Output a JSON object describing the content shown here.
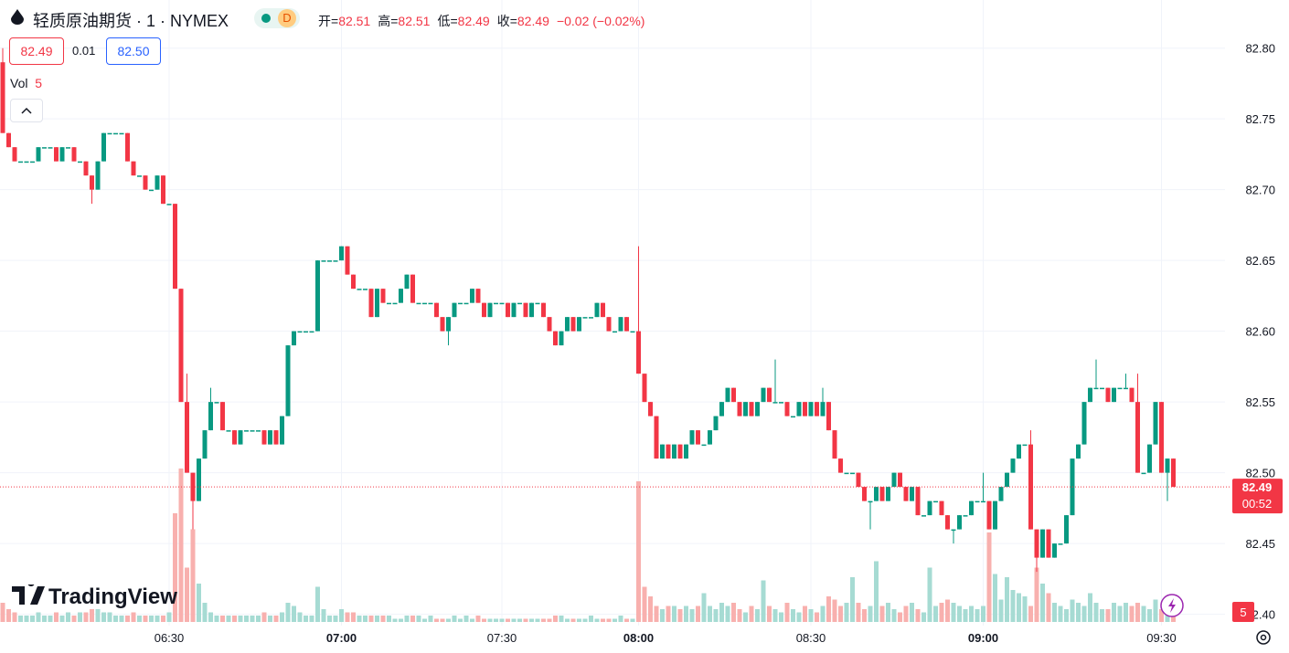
{
  "header": {
    "symbol": "轻质原油期货 · 1 · NYMEX",
    "badge": "D",
    "ohlc": [
      {
        "label": "开=",
        "value": 82.51
      },
      {
        "label": "高=",
        "value": 82.51
      },
      {
        "label": "低=",
        "value": 82.49
      },
      {
        "label": "收=",
        "value": 82.49
      }
    ],
    "change": "−0.02 (−0.02%)",
    "sell": "82.49",
    "spread": "0.01",
    "buy": "82.50",
    "volume_label": "Vol",
    "volume_value": 5,
    "brand": "TradingView"
  },
  "chart_data": {
    "type": "candlestick",
    "up_color": "#089981",
    "down_color": "#f23645",
    "up_volume_color": "#a6dbd3",
    "down_volume_color": "#f8b0ae",
    "grid": true,
    "categories": [
      null,
      null,
      null,
      null,
      null,
      null,
      null,
      null,
      null,
      null,
      null,
      null,
      null,
      null,
      null,
      null,
      null,
      null,
      null,
      null,
      null,
      null,
      null,
      null,
      null,
      null,
      null,
      null,
      "06:30",
      null,
      null,
      null,
      null,
      null,
      null,
      null,
      null,
      null,
      null,
      null,
      null,
      null,
      null,
      null,
      null,
      null,
      null,
      null,
      null,
      null,
      null,
      null,
      null,
      null,
      null,
      null,
      null,
      "07:00",
      null,
      null,
      null,
      null,
      null,
      null,
      null,
      null,
      null,
      null,
      null,
      null,
      null,
      null,
      null,
      null,
      null,
      null,
      null,
      null,
      null,
      null,
      null,
      null,
      null,
      null,
      "07:30",
      null,
      null,
      null,
      null,
      null,
      null,
      null,
      null,
      null,
      null,
      null,
      null,
      null,
      null,
      null,
      null,
      null,
      null,
      null,
      null,
      null,
      null,
      "08:00",
      null,
      null,
      null,
      null,
      null,
      null,
      null,
      null,
      null,
      null,
      null,
      null,
      null,
      null,
      null,
      null,
      null,
      null,
      null,
      null,
      null,
      null,
      null,
      null,
      null,
      null,
      null,
      null,
      "08:30",
      null,
      null,
      null,
      null,
      null,
      null,
      null,
      null,
      null,
      null,
      null,
      null,
      null,
      null,
      null,
      null,
      null,
      null,
      null,
      null,
      null,
      null,
      null,
      null,
      null,
      null,
      null,
      null,
      "09:00",
      null,
      null,
      null,
      null,
      null,
      null,
      null,
      null,
      null,
      null,
      null,
      null,
      null,
      null,
      null,
      null,
      null,
      null,
      null,
      null,
      null,
      null,
      null,
      null,
      null,
      null,
      null,
      null,
      null,
      "09:30",
      null,
      null
    ],
    "open": [
      82.79,
      82.74,
      82.73,
      82.72,
      82.72,
      82.72,
      82.72,
      82.73,
      82.73,
      82.73,
      82.72,
      82.73,
      82.73,
      82.72,
      82.72,
      82.71,
      82.7,
      82.72,
      82.74,
      82.74,
      82.74,
      82.74,
      82.72,
      82.71,
      82.71,
      82.7,
      82.7,
      82.71,
      82.69,
      82.69,
      82.63,
      82.55,
      82.5,
      82.48,
      82.51,
      82.53,
      82.55,
      82.55,
      82.53,
      82.53,
      82.52,
      82.53,
      82.53,
      82.53,
      82.53,
      82.52,
      82.53,
      82.52,
      82.54,
      82.59,
      82.6,
      82.6,
      82.6,
      82.6,
      82.65,
      82.65,
      82.65,
      82.65,
      82.66,
      82.64,
      82.63,
      82.63,
      82.63,
      82.61,
      82.63,
      82.62,
      82.62,
      82.62,
      82.63,
      82.64,
      82.62,
      82.62,
      82.62,
      82.62,
      82.61,
      82.6,
      82.61,
      82.62,
      82.62,
      82.62,
      82.63,
      82.62,
      82.61,
      82.62,
      82.62,
      82.62,
      82.61,
      82.62,
      82.62,
      82.61,
      82.62,
      82.62,
      82.61,
      82.6,
      82.59,
      82.6,
      82.61,
      82.6,
      82.61,
      82.61,
      82.61,
      82.62,
      82.61,
      82.6,
      82.6,
      82.61,
      82.6,
      82.6,
      82.57,
      82.55,
      82.54,
      82.51,
      82.52,
      82.51,
      82.52,
      82.51,
      82.52,
      82.53,
      82.52,
      82.52,
      82.53,
      82.54,
      82.55,
      82.56,
      82.55,
      82.54,
      82.55,
      82.54,
      82.55,
      82.56,
      82.55,
      82.55,
      82.55,
      82.54,
      82.54,
      82.55,
      82.54,
      82.55,
      82.54,
      82.55,
      82.53,
      82.51,
      82.5,
      82.5,
      82.5,
      82.49,
      82.48,
      82.48,
      82.49,
      82.48,
      82.49,
      82.5,
      82.49,
      82.48,
      82.49,
      82.47,
      82.47,
      82.48,
      82.48,
      82.47,
      82.46,
      82.46,
      82.47,
      82.47,
      82.48,
      82.48,
      82.48,
      82.46,
      82.48,
      82.49,
      82.5,
      82.51,
      82.52,
      82.52,
      82.46,
      82.44,
      82.46,
      82.44,
      82.45,
      82.45,
      82.47,
      82.51,
      82.52,
      82.55,
      82.56,
      82.56,
      82.56,
      82.55,
      82.56,
      82.56,
      82.56,
      82.55,
      82.5,
      82.5,
      82.52,
      82.55,
      82.5,
      82.51
    ],
    "high": [
      82.8,
      82.74,
      82.73,
      82.72,
      82.72,
      82.72,
      82.73,
      82.73,
      82.73,
      82.73,
      82.73,
      82.73,
      82.73,
      82.72,
      82.72,
      82.71,
      82.72,
      82.74,
      82.74,
      82.74,
      82.74,
      82.74,
      82.72,
      82.71,
      82.71,
      82.7,
      82.71,
      82.71,
      82.69,
      82.69,
      82.63,
      82.57,
      82.5,
      82.51,
      82.53,
      82.56,
      82.55,
      82.55,
      82.53,
      82.53,
      82.53,
      82.53,
      82.53,
      82.53,
      82.53,
      82.53,
      82.53,
      82.54,
      82.59,
      82.6,
      82.6,
      82.6,
      82.6,
      82.65,
      82.65,
      82.65,
      82.65,
      82.66,
      82.66,
      82.64,
      82.63,
      82.63,
      82.63,
      82.63,
      82.63,
      82.62,
      82.62,
      82.63,
      82.64,
      82.64,
      82.62,
      82.62,
      82.62,
      82.62,
      82.61,
      82.61,
      82.62,
      82.62,
      82.62,
      82.63,
      82.63,
      82.62,
      82.62,
      82.62,
      82.62,
      82.62,
      82.62,
      82.62,
      82.62,
      82.62,
      82.62,
      82.62,
      82.61,
      82.6,
      82.6,
      82.61,
      82.61,
      82.61,
      82.61,
      82.61,
      82.62,
      82.62,
      82.61,
      82.6,
      82.61,
      82.61,
      82.6,
      82.66,
      82.57,
      82.55,
      82.54,
      82.52,
      82.52,
      82.52,
      82.52,
      82.52,
      82.53,
      82.53,
      82.52,
      82.53,
      82.54,
      82.55,
      82.56,
      82.56,
      82.55,
      82.55,
      82.55,
      82.55,
      82.56,
      82.56,
      82.58,
      82.55,
      82.55,
      82.54,
      82.55,
      82.55,
      82.55,
      82.55,
      82.56,
      82.55,
      82.53,
      82.51,
      82.5,
      82.5,
      82.5,
      82.49,
      82.48,
      82.49,
      82.49,
      82.49,
      82.5,
      82.5,
      82.49,
      82.49,
      82.49,
      82.47,
      82.48,
      82.48,
      82.48,
      82.47,
      82.46,
      82.47,
      82.47,
      82.48,
      82.48,
      82.5,
      82.48,
      82.48,
      82.49,
      82.5,
      82.51,
      82.52,
      82.52,
      82.53,
      82.46,
      82.46,
      82.46,
      82.45,
      82.45,
      82.47,
      82.51,
      82.52,
      82.55,
      82.56,
      82.58,
      82.56,
      82.56,
      82.56,
      82.56,
      82.57,
      82.56,
      82.57,
      82.5,
      82.52,
      82.55,
      82.55,
      82.51,
      82.51
    ],
    "low": [
      82.74,
      82.73,
      82.72,
      82.72,
      82.72,
      82.72,
      82.72,
      82.73,
      82.73,
      82.72,
      82.72,
      82.73,
      82.72,
      82.72,
      82.71,
      82.69,
      82.7,
      82.72,
      82.74,
      82.74,
      82.74,
      82.72,
      82.71,
      82.71,
      82.7,
      82.7,
      82.7,
      82.69,
      82.69,
      82.63,
      82.55,
      82.5,
      82.46,
      82.48,
      82.51,
      82.53,
      82.55,
      82.53,
      82.53,
      82.52,
      82.52,
      82.53,
      82.53,
      82.53,
      82.52,
      82.52,
      82.52,
      82.52,
      82.54,
      82.59,
      82.6,
      82.6,
      82.6,
      82.6,
      82.65,
      82.65,
      82.65,
      82.65,
      82.64,
      82.63,
      82.63,
      82.63,
      82.61,
      82.61,
      82.62,
      82.62,
      82.62,
      82.62,
      82.63,
      82.62,
      82.62,
      82.62,
      82.62,
      82.61,
      82.6,
      82.59,
      82.61,
      82.62,
      82.62,
      82.62,
      82.62,
      82.61,
      82.61,
      82.62,
      82.62,
      82.61,
      82.61,
      82.62,
      82.61,
      82.61,
      82.62,
      82.61,
      82.6,
      82.59,
      82.59,
      82.6,
      82.6,
      82.6,
      82.61,
      82.61,
      82.61,
      82.61,
      82.6,
      82.6,
      82.6,
      82.6,
      82.6,
      82.57,
      82.55,
      82.54,
      82.51,
      82.51,
      82.51,
      82.51,
      82.51,
      82.51,
      82.52,
      82.52,
      82.52,
      82.52,
      82.53,
      82.54,
      82.55,
      82.55,
      82.54,
      82.54,
      82.54,
      82.54,
      82.55,
      82.55,
      82.55,
      82.55,
      82.54,
      82.54,
      82.54,
      82.54,
      82.54,
      82.54,
      82.54,
      82.53,
      82.51,
      82.5,
      82.5,
      82.5,
      82.49,
      82.48,
      82.46,
      82.48,
      82.48,
      82.48,
      82.49,
      82.49,
      82.48,
      82.48,
      82.47,
      82.47,
      82.47,
      82.48,
      82.47,
      82.46,
      82.45,
      82.46,
      82.47,
      82.47,
      82.48,
      82.48,
      82.46,
      82.46,
      82.48,
      82.49,
      82.5,
      82.51,
      82.52,
      82.46,
      82.43,
      82.44,
      82.44,
      82.44,
      82.45,
      82.45,
      82.47,
      82.51,
      82.52,
      82.55,
      82.56,
      82.56,
      82.55,
      82.55,
      82.56,
      82.56,
      82.55,
      82.5,
      82.5,
      82.5,
      82.52,
      82.5,
      82.48,
      82.49
    ],
    "close": [
      82.74,
      82.73,
      82.72,
      82.72,
      82.72,
      82.72,
      82.73,
      82.73,
      82.73,
      82.72,
      82.73,
      82.73,
      82.72,
      82.72,
      82.71,
      82.7,
      82.72,
      82.74,
      82.74,
      82.74,
      82.74,
      82.72,
      82.71,
      82.71,
      82.7,
      82.7,
      82.71,
      82.69,
      82.69,
      82.63,
      82.55,
      82.5,
      82.48,
      82.51,
      82.53,
      82.55,
      82.55,
      82.53,
      82.53,
      82.52,
      82.53,
      82.53,
      82.53,
      82.53,
      82.52,
      82.53,
      82.52,
      82.54,
      82.59,
      82.6,
      82.6,
      82.6,
      82.6,
      82.65,
      82.65,
      82.65,
      82.65,
      82.66,
      82.64,
      82.63,
      82.63,
      82.63,
      82.61,
      82.63,
      82.62,
      82.62,
      82.62,
      82.63,
      82.64,
      82.62,
      82.62,
      82.62,
      82.62,
      82.61,
      82.6,
      82.61,
      82.62,
      82.62,
      82.62,
      82.63,
      82.62,
      82.61,
      82.62,
      82.62,
      82.62,
      82.61,
      82.62,
      82.62,
      82.61,
      82.62,
      82.62,
      82.61,
      82.6,
      82.59,
      82.6,
      82.61,
      82.6,
      82.61,
      82.61,
      82.61,
      82.62,
      82.61,
      82.6,
      82.6,
      82.61,
      82.6,
      82.6,
      82.57,
      82.55,
      82.54,
      82.51,
      82.52,
      82.51,
      82.52,
      82.51,
      82.52,
      82.53,
      82.52,
      82.52,
      82.53,
      82.54,
      82.55,
      82.56,
      82.55,
      82.54,
      82.55,
      82.54,
      82.55,
      82.56,
      82.55,
      82.55,
      82.55,
      82.54,
      82.54,
      82.55,
      82.54,
      82.55,
      82.54,
      82.55,
      82.53,
      82.51,
      82.5,
      82.5,
      82.5,
      82.49,
      82.48,
      82.48,
      82.49,
      82.48,
      82.49,
      82.5,
      82.49,
      82.48,
      82.49,
      82.47,
      82.47,
      82.48,
      82.48,
      82.47,
      82.46,
      82.46,
      82.47,
      82.47,
      82.48,
      82.48,
      82.48,
      82.46,
      82.48,
      82.49,
      82.5,
      82.51,
      82.52,
      82.52,
      82.46,
      82.44,
      82.46,
      82.44,
      82.45,
      82.45,
      82.47,
      82.51,
      82.52,
      82.55,
      82.56,
      82.56,
      82.56,
      82.55,
      82.56,
      82.56,
      82.56,
      82.55,
      82.5,
      82.5,
      82.52,
      82.55,
      82.5,
      82.51,
      82.49
    ],
    "volume": [
      6,
      4,
      3,
      2,
      2,
      2,
      3,
      2,
      2,
      3,
      2,
      3,
      2,
      3,
      3,
      4,
      4,
      3,
      3,
      2,
      2,
      2,
      3,
      2,
      2,
      2,
      2,
      2,
      3,
      34,
      48,
      17,
      29,
      12,
      6,
      3,
      2,
      2,
      2,
      2,
      2,
      2,
      2,
      2,
      3,
      2,
      2,
      3,
      6,
      5,
      3,
      2,
      2,
      11,
      4,
      2,
      2,
      4,
      3,
      3,
      2,
      2,
      2,
      2,
      2,
      2,
      1,
      1,
      2,
      2,
      2,
      1,
      2,
      1,
      1,
      1,
      2,
      1,
      2,
      1,
      2,
      1,
      1,
      1,
      1,
      1,
      1,
      1,
      1,
      1,
      1,
      1,
      1,
      2,
      2,
      1,
      1,
      1,
      1,
      2,
      1,
      1,
      1,
      1,
      2,
      1,
      1,
      44,
      11,
      8,
      5,
      4,
      5,
      5,
      4,
      5,
      4,
      5,
      9,
      5,
      4,
      6,
      5,
      6,
      4,
      3,
      5,
      4,
      13,
      5,
      4,
      3,
      6,
      4,
      3,
      5,
      4,
      3,
      5,
      8,
      7,
      5,
      6,
      14,
      6,
      4,
      5,
      19,
      5,
      6,
      4,
      3,
      5,
      6,
      4,
      3,
      17,
      5,
      6,
      7,
      6,
      5,
      4,
      5,
      4,
      5,
      28,
      15,
      7,
      14,
      10,
      9,
      8,
      5,
      17,
      12,
      9,
      6,
      5,
      4,
      7,
      6,
      5,
      9,
      6,
      4,
      4,
      6,
      5,
      6,
      5,
      6,
      5,
      4,
      7,
      4,
      3,
      5
    ],
    "ylim": [
      82.392,
      82.834
    ],
    "yticks": [
      {
        "value": 82.4,
        "label": "82.40"
      },
      82.45,
      {
        "value": 82.5,
        "label": "82.50"
      },
      82.55,
      {
        "value": 82.6,
        "label": "82.60"
      },
      82.65,
      {
        "value": 82.7,
        "label": "82.70"
      },
      82.75,
      {
        "value": 82.8,
        "label": "82.80"
      }
    ],
    "last_price": 82.49,
    "countdown": "00:52",
    "last_volume": 5
  }
}
